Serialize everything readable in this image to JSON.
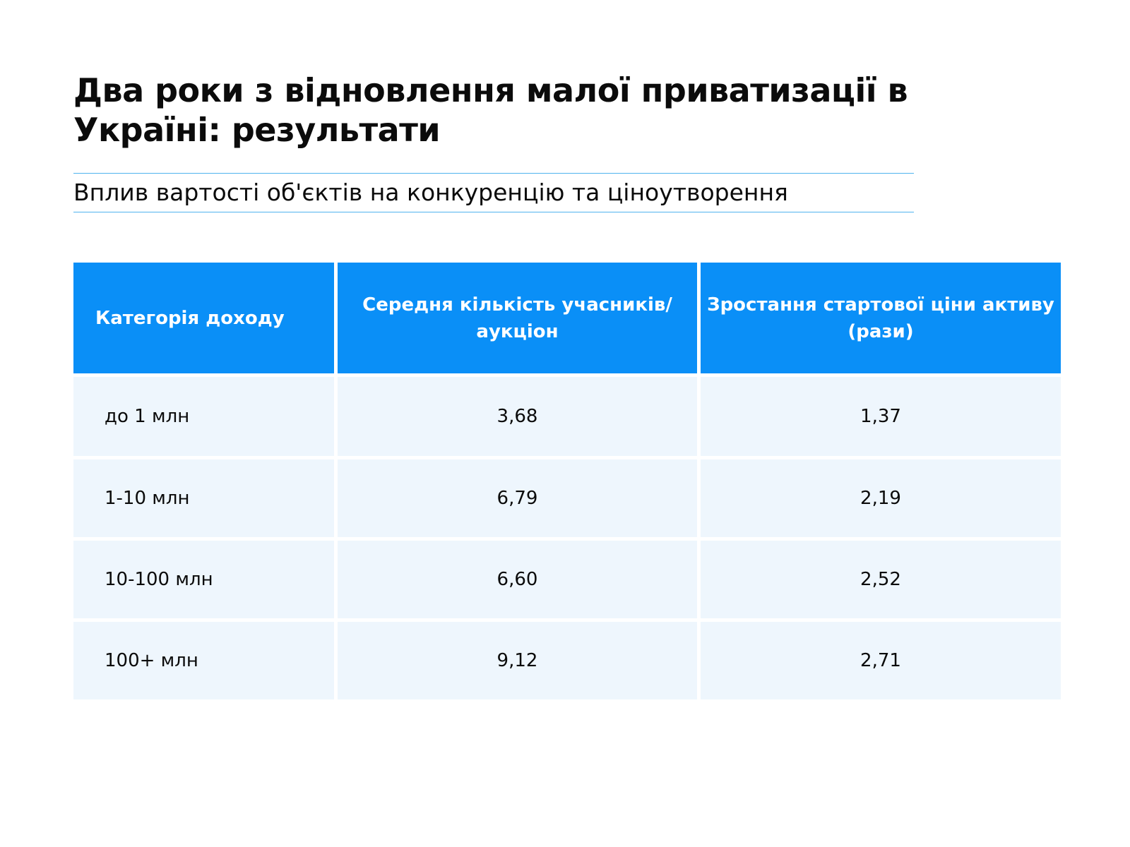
{
  "title": "Два роки з відновлення малої приватизації в Україні: результати",
  "subtitle": "Вплив вартості об'єктів на конкуренцію та ціноутворення",
  "table": {
    "headers": [
      "Категорія доходу",
      "Середня кількість учасників/аукціон",
      "Зростання стартової ціни активу (рази)"
    ],
    "rows": [
      [
        "до 1 млн",
        "3,68",
        "1,37"
      ],
      [
        "1-10 млн",
        "6,79",
        "2,19"
      ],
      [
        "10-100 млн",
        "6,60",
        "2,52"
      ],
      [
        "100+ млн",
        "9,12",
        "2,71"
      ]
    ]
  },
  "colors": {
    "header_bg": "#0a8ff7",
    "row_bg": "#eef6fd",
    "rule": "#4fb3ee",
    "text": "#0b0b0b"
  }
}
